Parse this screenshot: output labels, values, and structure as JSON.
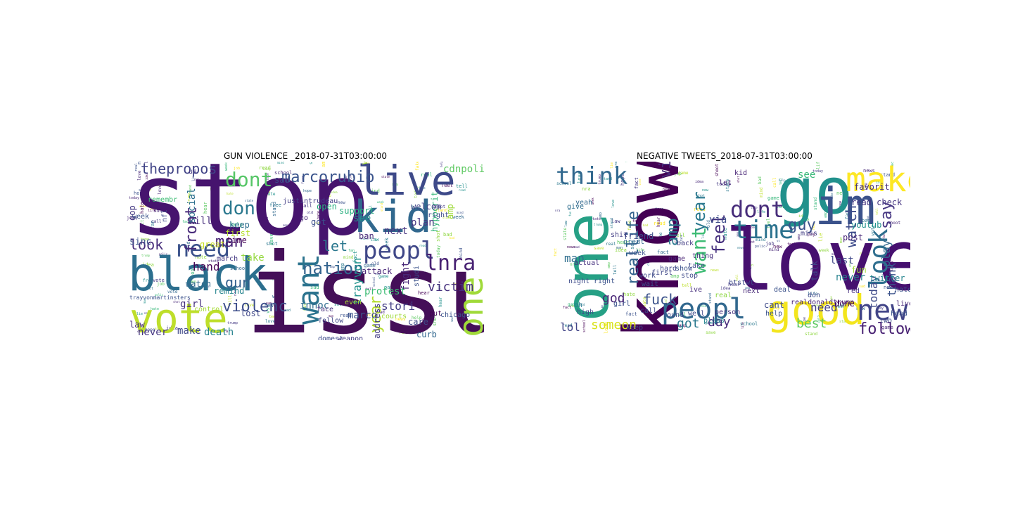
{
  "figure": {
    "panels": [
      {
        "title": "GUN VIOLENCE _2018-07-31T03:00:00",
        "words": [
          {
            "text": "stop",
            "color": "#46146e"
          },
          {
            "text": "issu",
            "color": "#440f58"
          },
          {
            "text": "black",
            "color": "#2c6f8e"
          },
          {
            "text": "vote",
            "color": "#bede2a"
          },
          {
            "text": "want",
            "color": "#2b738e"
          },
          {
            "text": "live",
            "color": "#3e4a89"
          },
          {
            "text": "kid",
            "color": "#31688e"
          },
          {
            "text": "peopl",
            "color": "#3f4788"
          },
          {
            "text": "need",
            "color": "#3b528b"
          },
          {
            "text": "year",
            "color": "#b3dc2b"
          },
          {
            "text": "one",
            "color": "#a0da39"
          },
          {
            "text": "nation",
            "color": "#33638d"
          },
          {
            "text": "lnra",
            "color": "#482273"
          },
          {
            "text": "dont",
            "color": "#56c667"
          },
          {
            "text": "thepropos",
            "color": "#414487"
          },
          {
            "text": "marcorubio",
            "color": "#3a548c"
          },
          {
            "text": "don",
            "color": "#2a788e"
          },
          {
            "text": "front",
            "color": "#472a7a"
          },
          {
            "text": "man",
            "color": "#482475"
          },
          {
            "text": "look",
            "color": "#472d7b"
          },
          {
            "text": "gun",
            "color": "#34608d"
          },
          {
            "text": "let",
            "color": "#2a778e"
          },
          {
            "text": "violenc",
            "color": "#3d4e8a"
          },
          {
            "text": "victim",
            "color": "#46307e"
          },
          {
            "text": "hand",
            "color": "#440154"
          },
          {
            "text": "trayvon",
            "color": "#20928c"
          },
          {
            "text": "fight",
            "color": "#482878"
          },
          {
            "text": "stori",
            "color": "#433e85"
          },
          {
            "text": "marco",
            "color": "#3b528b"
          },
          {
            "text": "innoc",
            "color": "#2f6c8e"
          },
          {
            "text": "make",
            "color": "#3f4889"
          },
          {
            "text": "death",
            "color": "#26828e"
          },
          {
            "text": "hypocrit",
            "color": "#35b779"
          },
          {
            "text": "protest",
            "color": "#3dbc74"
          },
          {
            "text": "plan",
            "color": "#453581"
          },
          {
            "text": "kill",
            "color": "#472f7d"
          },
          {
            "text": "see",
            "color": "#21908d"
          },
          {
            "text": "cdnpoli",
            "color": "#5ec962"
          },
          {
            "text": "welcom",
            "color": "#404588"
          },
          {
            "text": "next",
            "color": "#46337f"
          },
          {
            "text": "attack",
            "color": "#482677"
          },
          {
            "text": "take",
            "color": "#95d840"
          },
          {
            "text": "social",
            "color": "#2d708e"
          },
          {
            "text": "sinc",
            "color": "#3b528b"
          },
          {
            "text": "watch",
            "color": "#31688e"
          },
          {
            "text": "gop",
            "color": "#453882"
          },
          {
            "text": "law",
            "color": "#472c7a"
          },
          {
            "text": "never",
            "color": "#453581"
          },
          {
            "text": "girl",
            "color": "#46307e"
          },
          {
            "text": "lost",
            "color": "#3f4788"
          },
          {
            "text": "remind",
            "color": "#25848e"
          },
          {
            "text": "first",
            "color": "#b5de2b"
          },
          {
            "text": "time",
            "color": "#440154"
          },
          {
            "text": "keep",
            "color": "#2e6e8e"
          },
          {
            "text": "march",
            "color": "#453882"
          },
          {
            "text": "sad",
            "color": "#3e4989"
          },
          {
            "text": "got",
            "color": "#3c4f8a"
          },
          {
            "text": "open",
            "color": "#29af7f"
          },
          {
            "text": "support",
            "color": "#29af7f"
          },
          {
            "text": "ban",
            "color": "#482979"
          },
          {
            "text": "way",
            "color": "#a8db34"
          },
          {
            "text": "care",
            "color": "#3e4a89"
          },
          {
            "text": "curb",
            "color": "#31688e"
          },
          {
            "text": "chicago",
            "color": "#3b528b"
          },
          {
            "text": "address",
            "color": "#433d84"
          },
          {
            "text": "weapon",
            "color": "#433e85"
          },
          {
            "text": "domest",
            "color": "#3e4c8a"
          },
          {
            "text": "face",
            "color": "#472f7d"
          },
          {
            "text": "put",
            "color": "#440154"
          },
          {
            "text": "follow",
            "color": "#3f4788"
          },
          {
            "text": "remain",
            "color": "#bddf26"
          },
          {
            "text": "control",
            "color": "#a5db36"
          },
          {
            "text": "trudeau",
            "color": "#c2df23"
          },
          {
            "text": "even",
            "color": "#a8db34"
          },
          {
            "text": "courts",
            "color": "#a0da39"
          },
          {
            "text": "studi",
            "color": "#3b528b"
          },
          {
            "text": "right",
            "color": "#3e4a89"
          },
          {
            "text": "remembr",
            "color": "#3dbc74"
          },
          {
            "text": "week",
            "color": "#3b528b"
          },
          {
            "text": "great",
            "color": "#c8e020"
          },
          {
            "text": "us",
            "color": "#453882"
          },
          {
            "text": "justintrudeau",
            "color": "#433e85"
          },
          {
            "text": "amp",
            "color": "#9fda3a"
          },
          {
            "text": "go",
            "color": "#482878"
          },
          {
            "text": "nfl",
            "color": "#3e4989"
          },
          {
            "text": "trayvonmartinsters",
            "color": "#3b528b"
          }
        ]
      },
      {
        "title": "NEGATIVE TWEETS_2018-07-31T03:00:00",
        "words": [
          {
            "text": "love",
            "color": "#46106f"
          },
          {
            "text": "know",
            "color": "#440154"
          },
          {
            "text": "go",
            "color": "#21918c"
          },
          {
            "text": "im",
            "color": "#3b528b"
          },
          {
            "text": "one",
            "color": "#26a085"
          },
          {
            "text": "good",
            "color": "#f3e51e"
          },
          {
            "text": "make",
            "color": "#fde725"
          },
          {
            "text": "peopl",
            "color": "#31688e"
          },
          {
            "text": "new",
            "color": "#414487"
          },
          {
            "text": "look",
            "color": "#2e6e8e"
          },
          {
            "text": "time",
            "color": "#2c728e"
          },
          {
            "text": "think",
            "color": "#31688e"
          },
          {
            "text": "dont",
            "color": "#472c7a"
          },
          {
            "text": "want",
            "color": "#3dbc74"
          },
          {
            "text": "year",
            "color": "#2a788e"
          },
          {
            "text": "video",
            "color": "#472d7b"
          },
          {
            "text": "reallife",
            "color": "#33638d"
          },
          {
            "text": "amp",
            "color": "#2a778e"
          },
          {
            "text": "say",
            "color": "#453581"
          },
          {
            "text": "follow",
            "color": "#482173"
          },
          {
            "text": "feel",
            "color": "#46307e"
          },
          {
            "text": "guy",
            "color": "#3b528b"
          },
          {
            "text": "watch",
            "color": "#3e4c8a"
          },
          {
            "text": "god",
            "color": "#482475"
          },
          {
            "text": "fuck",
            "color": "#3b528b"
          },
          {
            "text": "got",
            "color": "#2a788e"
          },
          {
            "text": "day",
            "color": "#472a7a"
          },
          {
            "text": "someon",
            "color": "#d8e219"
          },
          {
            "text": "best",
            "color": "#5ec962"
          },
          {
            "text": "need",
            "color": "#433e85"
          },
          {
            "text": "thank",
            "color": "#3b528b"
          },
          {
            "text": "play",
            "color": "#31688e"
          },
          {
            "text": "today",
            "color": "#3e4a89"
          },
          {
            "text": "last",
            "color": "#3f4788"
          },
          {
            "text": "never",
            "color": "#26828e"
          },
          {
            "text": "man",
            "color": "#2e6e8e"
          },
          {
            "text": "lol",
            "color": "#414487"
          },
          {
            "text": "via",
            "color": "#3e4c8a"
          },
          {
            "text": "see",
            "color": "#37b878"
          },
          {
            "text": "talk",
            "color": "#3f4788"
          },
          {
            "text": "friend",
            "color": "#3d4e8a"
          },
          {
            "text": "kid",
            "color": "#482475"
          },
          {
            "text": "twitter",
            "color": "#25848e"
          },
          {
            "text": "cant",
            "color": "#3e4a89"
          },
          {
            "text": "realdonaldtrump",
            "color": "#482475"
          },
          {
            "text": "read check",
            "color": "#453581"
          },
          {
            "text": "favorit",
            "color": "#46307e"
          },
          {
            "text": "post",
            "color": "#482677"
          },
          {
            "text": "youtub",
            "color": "#20928c"
          },
          {
            "text": "done",
            "color": "#440154"
          },
          {
            "text": "help",
            "color": "#3b528b"
          },
          {
            "text": "person",
            "color": "#46307e"
          },
          {
            "text": "found",
            "color": "#3e4989"
          },
          {
            "text": "well",
            "color": "#3e4a89"
          },
          {
            "text": "pleas",
            "color": "#25848e"
          },
          {
            "text": "night",
            "color": "#3e4c8a"
          },
          {
            "text": "right",
            "color": "#3b528b"
          },
          {
            "text": "wait",
            "color": "#3d4e8a"
          },
          {
            "text": "hard",
            "color": "#3f4788"
          },
          {
            "text": "stop",
            "color": "#3e4a89"
          },
          {
            "text": "game",
            "color": "#482475"
          },
          {
            "text": "show",
            "color": "#3b528b"
          },
          {
            "text": "thing",
            "color": "#472f7d"
          },
          {
            "text": "back",
            "color": "#433d84"
          },
          {
            "text": "week",
            "color": "#3b528b"
          },
          {
            "text": "give",
            "color": "#2e6e8e"
          },
          {
            "text": "shit",
            "color": "#433e85"
          },
          {
            "text": "great",
            "color": "#31688e"
          },
          {
            "text": "let",
            "color": "#482677"
          },
          {
            "text": "fun",
            "color": "#a0da39"
          },
          {
            "text": "btstwt",
            "color": "#3e4a89"
          },
          {
            "text": "next",
            "color": "#482878"
          },
          {
            "text": "take",
            "color": "#3e4c8a"
          },
          {
            "text": "deal",
            "color": "#3b528b"
          },
          {
            "text": "real",
            "color": "#8fd744"
          },
          {
            "text": "call",
            "color": "#3e4989"
          },
          {
            "text": "oh",
            "color": "#2a788e"
          },
          {
            "text": "keep",
            "color": "#3e4a89"
          },
          {
            "text": "girl",
            "color": "#3b528b"
          },
          {
            "text": "actual",
            "color": "#46307e"
          },
          {
            "text": "high",
            "color": "#3f4788"
          },
          {
            "text": "work",
            "color": "#3e4a89"
          },
          {
            "text": "ive",
            "color": "#472f7d"
          },
          {
            "text": "head",
            "color": "#3b528b"
          },
          {
            "text": "live",
            "color": "#482677"
          },
          {
            "text": "two",
            "color": "#3d4e8a"
          },
          {
            "text": "miss",
            "color": "#433e85"
          },
          {
            "text": "don",
            "color": "#3e4a89"
          },
          {
            "text": "yeah",
            "color": "#31688e"
          },
          {
            "text": "first",
            "color": "#3f4788"
          },
          {
            "text": "hate",
            "color": "#3b528b"
          },
          {
            "text": "red",
            "color": "#46307e"
          }
        ]
      }
    ]
  }
}
